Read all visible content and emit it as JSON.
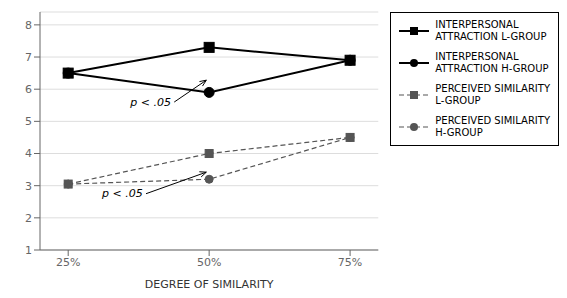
{
  "chart_data": {
    "type": "line",
    "xlabel": "DEGREE OF SIMILARITY",
    "x": [
      25,
      50,
      75
    ],
    "xlim": [
      20,
      80
    ],
    "xticks": [
      {
        "value": 25,
        "label": "25%"
      },
      {
        "value": 50,
        "label": "50%"
      },
      {
        "value": 75,
        "label": "75%"
      }
    ],
    "ylim": [
      1,
      8.4
    ],
    "yticks": [
      1,
      2,
      3,
      4,
      5,
      6,
      7,
      8
    ],
    "grid": "y",
    "legend": "right",
    "series": [
      {
        "name": "INTERPERSONAL\nATTRACTION L-GROUP",
        "color": "#000000",
        "values": [
          6.5,
          7.3,
          6.9
        ],
        "marker": "square",
        "line_style": "solid"
      },
      {
        "name": "INTERPERSONAL\nATTRACTION H-GROUP",
        "color": "#000000",
        "values": [
          6.5,
          5.9,
          6.9
        ],
        "marker": "circle",
        "line_style": "solid"
      },
      {
        "name": "PERCEIVED SIMILARITY\nL-GROUP",
        "color": "#555555",
        "values": [
          3.05,
          4.0,
          4.5
        ],
        "marker": "square",
        "line_style": "dashed"
      },
      {
        "name": "PERCEIVED SIMILARITY\nH-GROUP",
        "color": "#555555",
        "values": [
          3.05,
          3.2,
          4.5
        ],
        "marker": "circle",
        "line_style": "dashed"
      }
    ],
    "annotations": [
      {
        "text": "p < .05",
        "x": 36,
        "y": 5.6,
        "arrow_x": 49.5,
        "arrow_y": 6.28
      },
      {
        "text": "p < .05",
        "x": 31,
        "y": 2.75,
        "arrow_x": 49.5,
        "arrow_y": 3.42
      }
    ]
  }
}
